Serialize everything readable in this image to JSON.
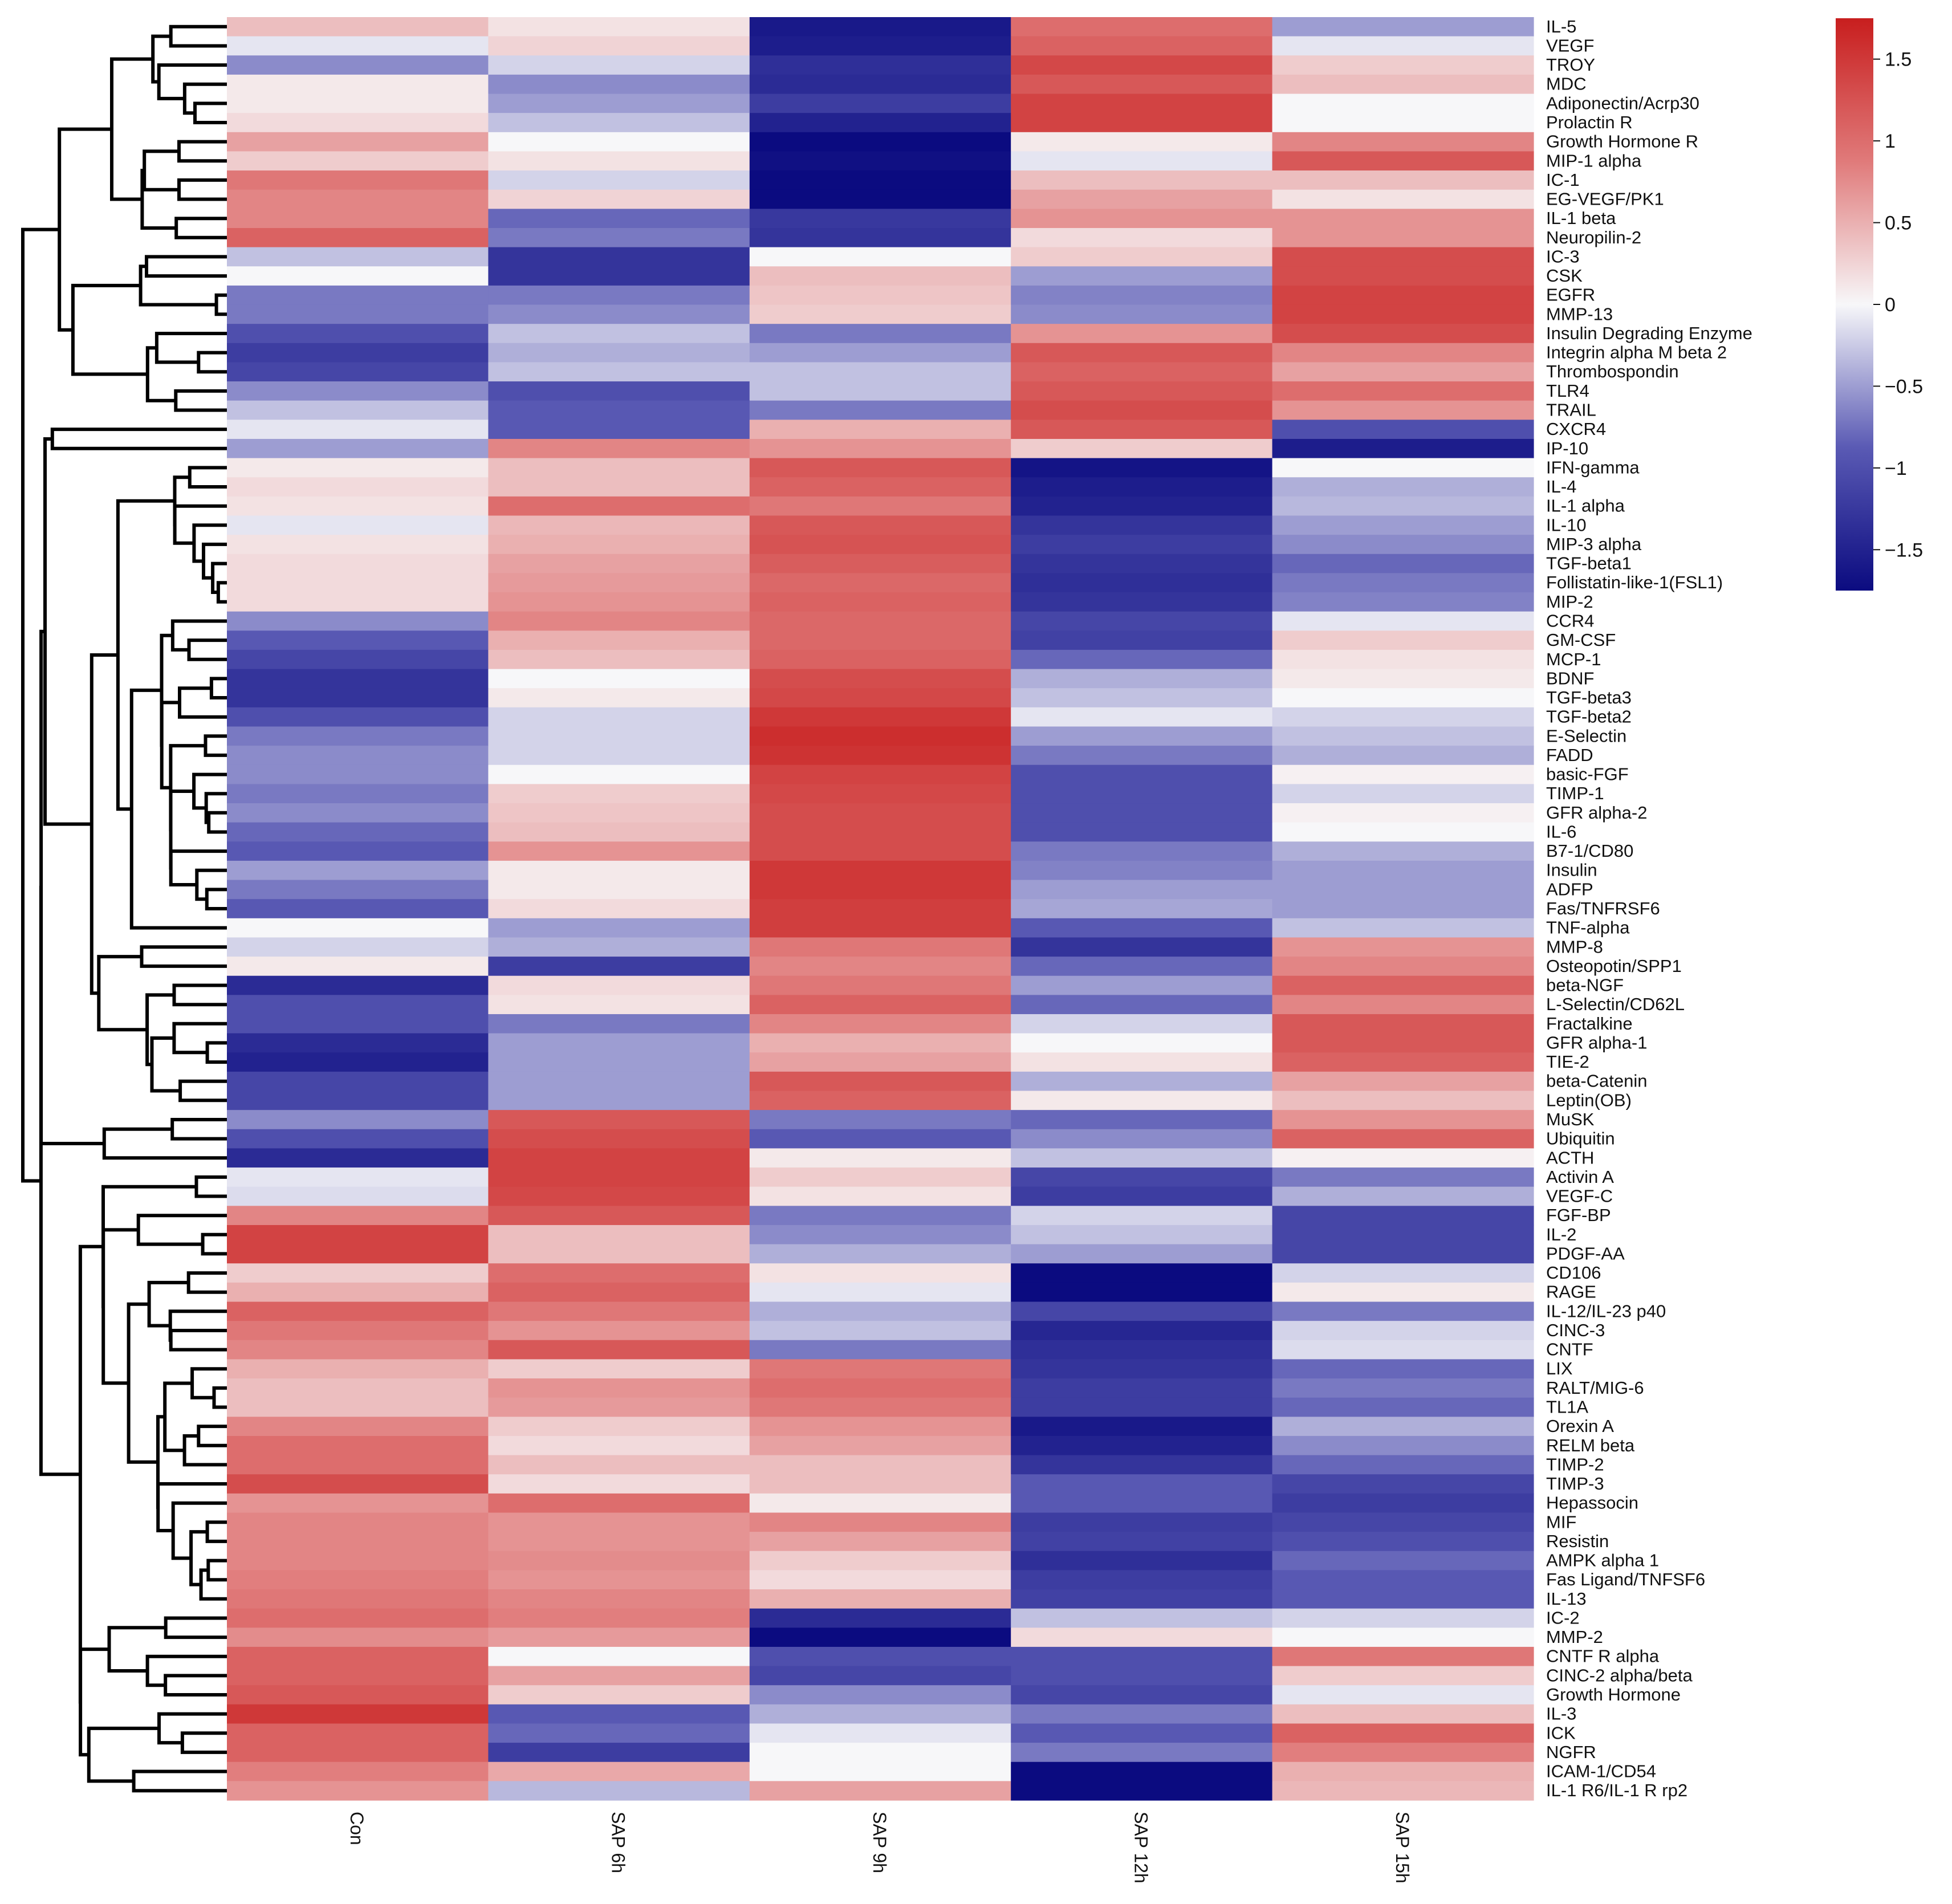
{
  "chart_data": {
    "type": "heatmap",
    "title": "",
    "xlabel": "",
    "ylabel": "",
    "columns": [
      "Con",
      "SAP 6h",
      "SAP 9h",
      "SAP 12h",
      "SAP 15h"
    ],
    "colorbar": {
      "min": -1.75,
      "max": 1.75,
      "ticks": [
        1.5,
        1,
        0.5,
        0,
        -0.5,
        -1,
        -1.5
      ],
      "tick_labels": [
        "1.5",
        "1",
        "0.5",
        "0",
        "−0.5",
        "−1",
        "−1.5"
      ],
      "colors": {
        "low": "#0b0b80",
        "mid": "#f7f7f9",
        "high": "#c81e1e"
      }
    },
    "rows": [
      {
        "label": "IL-5",
        "values": [
          0.4,
          0.15,
          -1.6,
          1.0,
          -0.5
        ]
      },
      {
        "label": "VEGF",
        "values": [
          -0.1,
          0.25,
          -1.55,
          1.1,
          -0.1
        ]
      },
      {
        "label": "TROY",
        "values": [
          -0.6,
          -0.2,
          -1.35,
          1.35,
          0.3
        ]
      },
      {
        "label": "MDC",
        "values": [
          0.1,
          -0.6,
          -1.4,
          1.2,
          0.4
        ]
      },
      {
        "label": "Adiponectin/Acrp30",
        "values": [
          0.1,
          -0.5,
          -1.2,
          1.4,
          0.0
        ]
      },
      {
        "label": "Prolactin R",
        "values": [
          0.2,
          -0.3,
          -1.5,
          1.4,
          0.0
        ]
      },
      {
        "label": "Growth Hormone R",
        "values": [
          0.6,
          0.0,
          -1.75,
          0.1,
          0.8
        ]
      },
      {
        "label": "MIP-1 alpha",
        "values": [
          0.3,
          0.15,
          -1.7,
          -0.1,
          1.2
        ]
      },
      {
        "label": "IC-1",
        "values": [
          0.9,
          -0.2,
          -1.75,
          0.4,
          0.4
        ]
      },
      {
        "label": "EG-VEGF/PK1",
        "values": [
          0.8,
          0.25,
          -1.75,
          0.6,
          0.15
        ]
      },
      {
        "label": "IL-1 beta",
        "values": [
          0.8,
          -0.8,
          -1.25,
          0.7,
          0.7
        ]
      },
      {
        "label": "Neuropilin-2",
        "values": [
          1.1,
          -0.7,
          -1.3,
          0.2,
          0.7
        ]
      },
      {
        "label": "IC-3",
        "values": [
          -0.3,
          -1.3,
          0.0,
          0.3,
          1.3
        ]
      },
      {
        "label": "CSK",
        "values": [
          0.0,
          -1.3,
          0.4,
          -0.5,
          1.3
        ]
      },
      {
        "label": "EGFR",
        "values": [
          -0.7,
          -0.7,
          0.35,
          -0.65,
          1.4
        ]
      },
      {
        "label": "MMP-13",
        "values": [
          -0.7,
          -0.6,
          0.3,
          -0.6,
          1.4
        ]
      },
      {
        "label": "Insulin Degrading Enzyme",
        "values": [
          -1.0,
          -0.3,
          -0.7,
          0.7,
          1.3
        ]
      },
      {
        "label": "Integrin alpha M beta 2",
        "values": [
          -1.2,
          -0.4,
          -0.5,
          1.2,
          0.8
        ]
      },
      {
        "label": "Thrombospondin",
        "values": [
          -1.1,
          -0.3,
          -0.3,
          1.1,
          0.6
        ]
      },
      {
        "label": "TLR4",
        "values": [
          -0.6,
          -1.0,
          -0.3,
          1.2,
          1.0
        ]
      },
      {
        "label": "TRAIL",
        "values": [
          -0.3,
          -0.9,
          -0.7,
          1.3,
          0.7
        ]
      },
      {
        "label": "CXCR4",
        "values": [
          -0.1,
          -0.9,
          0.5,
          1.2,
          -1.0
        ]
      },
      {
        "label": "IP-10",
        "values": [
          -0.5,
          0.8,
          0.7,
          0.3,
          -1.55
        ]
      },
      {
        "label": "IFN-gamma",
        "values": [
          0.1,
          0.4,
          1.2,
          -1.65,
          0.0
        ]
      },
      {
        "label": "IL-4",
        "values": [
          0.2,
          0.4,
          1.1,
          -1.55,
          -0.4
        ]
      },
      {
        "label": "IL-1 alpha",
        "values": [
          0.15,
          1.0,
          0.9,
          -1.5,
          -0.35
        ]
      },
      {
        "label": "IL-10",
        "values": [
          -0.1,
          0.45,
          1.2,
          -1.3,
          -0.5
        ]
      },
      {
        "label": "MIP-3 alpha",
        "values": [
          0.15,
          0.5,
          1.25,
          -1.2,
          -0.6
        ]
      },
      {
        "label": "TGF-beta1",
        "values": [
          0.2,
          0.6,
          1.15,
          -1.3,
          -0.8
        ]
      },
      {
        "label": "Follistatin-like-1(FSL1)",
        "values": [
          0.2,
          0.65,
          1.05,
          -1.35,
          -0.7
        ]
      },
      {
        "label": "MIP-2",
        "values": [
          0.2,
          0.7,
          1.1,
          -1.3,
          -0.65
        ]
      },
      {
        "label": "CCR4",
        "values": [
          -0.6,
          0.8,
          1.05,
          -1.1,
          -0.1
        ]
      },
      {
        "label": "GM-CSF",
        "values": [
          -0.9,
          0.5,
          1.05,
          -1.15,
          0.3
        ]
      },
      {
        "label": "MCP-1",
        "values": [
          -1.1,
          0.4,
          1.1,
          -0.8,
          0.15
        ]
      },
      {
        "label": "BDNF",
        "values": [
          -1.3,
          0.0,
          1.3,
          -0.4,
          0.1
        ]
      },
      {
        "label": "TGF-beta3",
        "values": [
          -1.3,
          0.1,
          1.35,
          -0.3,
          0.0
        ]
      },
      {
        "label": "TGF-beta2",
        "values": [
          -1.0,
          -0.2,
          1.5,
          -0.1,
          -0.2
        ]
      },
      {
        "label": "E-Selectin",
        "values": [
          -0.7,
          -0.2,
          1.6,
          -0.5,
          -0.3
        ]
      },
      {
        "label": "FADD",
        "values": [
          -0.6,
          -0.2,
          1.55,
          -0.7,
          -0.4
        ]
      },
      {
        "label": "basic-FGF",
        "values": [
          -0.6,
          0.0,
          1.4,
          -1.0,
          0.05
        ]
      },
      {
        "label": "TIMP-1",
        "values": [
          -0.7,
          0.3,
          1.35,
          -1.0,
          -0.2
        ]
      },
      {
        "label": "GFR alpha-2",
        "values": [
          -0.6,
          0.35,
          1.3,
          -1.0,
          0.05
        ]
      },
      {
        "label": "IL-6",
        "values": [
          -0.8,
          0.4,
          1.3,
          -1.0,
          0.0
        ]
      },
      {
        "label": "B7-1/CD80",
        "values": [
          -0.9,
          0.7,
          1.3,
          -0.7,
          -0.4
        ]
      },
      {
        "label": "Insulin",
        "values": [
          -0.5,
          0.1,
          1.5,
          -0.65,
          -0.5
        ]
      },
      {
        "label": "ADFP",
        "values": [
          -0.7,
          0.1,
          1.5,
          -0.5,
          -0.5
        ]
      },
      {
        "label": "Fas/TNFRSF6",
        "values": [
          -0.9,
          0.2,
          1.45,
          -0.45,
          -0.5
        ]
      },
      {
        "label": "TNF-alpha",
        "values": [
          0.0,
          -0.5,
          1.45,
          -0.9,
          -0.3
        ]
      },
      {
        "label": "MMP-8",
        "values": [
          -0.2,
          -0.4,
          0.9,
          -1.3,
          0.7
        ]
      },
      {
        "label": "Osteopotin/SPP1",
        "values": [
          0.1,
          -1.2,
          0.8,
          -0.8,
          0.8
        ]
      },
      {
        "label": "beta-NGF",
        "values": [
          -1.4,
          0.2,
          0.9,
          -0.5,
          1.1
        ]
      },
      {
        "label": "L-Selectin/CD62L",
        "values": [
          -1.0,
          0.15,
          1.1,
          -0.8,
          0.8
        ]
      },
      {
        "label": "Fractalkine",
        "values": [
          -1.0,
          -0.7,
          0.8,
          -0.2,
          1.2
        ]
      },
      {
        "label": "GFR alpha-1",
        "values": [
          -1.4,
          -0.5,
          0.5,
          0.0,
          1.2
        ]
      },
      {
        "label": "TIE-2",
        "values": [
          -1.5,
          -0.5,
          0.6,
          0.15,
          1.1
        ]
      },
      {
        "label": "beta-Catenin",
        "values": [
          -1.1,
          -0.5,
          1.2,
          -0.4,
          0.6
        ]
      },
      {
        "label": "Leptin(OB)",
        "values": [
          -1.1,
          -0.5,
          1.1,
          0.1,
          0.4
        ]
      },
      {
        "label": "MuSK",
        "values": [
          -0.6,
          1.2,
          -0.7,
          -0.8,
          0.7
        ]
      },
      {
        "label": "Ubiquitin",
        "values": [
          -1.0,
          1.3,
          -0.9,
          -0.6,
          1.1
        ]
      },
      {
        "label": "ACTH",
        "values": [
          -1.4,
          1.4,
          0.1,
          -0.3,
          0.05
        ]
      },
      {
        "label": "Activin A",
        "values": [
          -0.1,
          1.4,
          0.3,
          -1.1,
          -0.7
        ]
      },
      {
        "label": "VEGF-C",
        "values": [
          -0.15,
          1.35,
          0.15,
          -1.2,
          -0.4
        ]
      },
      {
        "label": "FGF-BP",
        "values": [
          0.8,
          1.2,
          -0.7,
          -0.2,
          -1.1
        ]
      },
      {
        "label": "IL-2",
        "values": [
          1.4,
          0.4,
          -0.6,
          -0.3,
          -1.1
        ]
      },
      {
        "label": "PDGF-AA",
        "values": [
          1.4,
          0.4,
          -0.4,
          -0.5,
          -1.1
        ]
      },
      {
        "label": "CD106",
        "values": [
          0.3,
          1.0,
          0.15,
          -1.75,
          -0.2
        ]
      },
      {
        "label": "RAGE",
        "values": [
          0.5,
          1.1,
          -0.1,
          -1.75,
          0.1
        ]
      },
      {
        "label": "IL-12/IL-23 p40",
        "values": [
          1.1,
          0.9,
          -0.4,
          -1.1,
          -0.7
        ]
      },
      {
        "label": "CINC-3",
        "values": [
          0.9,
          0.7,
          -0.3,
          -1.45,
          -0.2
        ]
      },
      {
        "label": "CNTF",
        "values": [
          0.8,
          1.2,
          -0.7,
          -1.35,
          -0.15
        ]
      },
      {
        "label": "LIX",
        "values": [
          0.5,
          0.3,
          0.9,
          -1.3,
          -0.8
        ]
      },
      {
        "label": "RALT/MIG-6",
        "values": [
          0.4,
          0.7,
          1.0,
          -1.2,
          -0.7
        ]
      },
      {
        "label": "TL1A",
        "values": [
          0.4,
          0.65,
          0.9,
          -1.2,
          -0.8
        ]
      },
      {
        "label": "Orexin A",
        "values": [
          0.8,
          0.3,
          0.7,
          -1.6,
          -0.4
        ]
      },
      {
        "label": "RELM beta",
        "values": [
          1.0,
          0.2,
          0.6,
          -1.5,
          -0.6
        ]
      },
      {
        "label": "TIMP-2",
        "values": [
          1.0,
          0.4,
          0.4,
          -1.3,
          -0.8
        ]
      },
      {
        "label": "TIMP-3",
        "values": [
          1.3,
          0.2,
          0.4,
          -0.9,
          -1.1
        ]
      },
      {
        "label": "Hepassocin",
        "values": [
          0.7,
          1.0,
          0.1,
          -0.9,
          -1.2
        ]
      },
      {
        "label": "MIF",
        "values": [
          0.8,
          0.7,
          0.8,
          -1.2,
          -1.1
        ]
      },
      {
        "label": "Resistin",
        "values": [
          0.8,
          0.7,
          0.6,
          -1.15,
          -1.0
        ]
      },
      {
        "label": "AMPK alpha 1",
        "values": [
          0.8,
          0.75,
          0.3,
          -1.35,
          -0.8
        ]
      },
      {
        "label": "Fas Ligand/TNFSF6",
        "values": [
          0.85,
          0.7,
          0.2,
          -1.2,
          -0.9
        ]
      },
      {
        "label": "IL-13",
        "values": [
          0.9,
          0.8,
          0.5,
          -1.15,
          -0.9
        ]
      },
      {
        "label": "IC-2",
        "values": [
          1.0,
          0.85,
          -1.4,
          -0.3,
          -0.2
        ]
      },
      {
        "label": "MMP-2",
        "values": [
          0.75,
          0.65,
          -1.75,
          0.2,
          0.0
        ]
      },
      {
        "label": "CNTF R alpha",
        "values": [
          1.1,
          0.0,
          -1.0,
          -1.0,
          0.9
        ]
      },
      {
        "label": "CINC-2 alpha/beta",
        "values": [
          1.1,
          0.6,
          -1.1,
          -1.0,
          0.3
        ]
      },
      {
        "label": "Growth Hormone",
        "values": [
          1.2,
          0.3,
          -0.6,
          -1.1,
          -0.1
        ]
      },
      {
        "label": "IL-3",
        "values": [
          1.5,
          -0.9,
          -0.4,
          -0.7,
          0.4
        ]
      },
      {
        "label": "ICK",
        "values": [
          1.1,
          -0.8,
          -0.1,
          -0.9,
          1.1
        ]
      },
      {
        "label": "NGFR",
        "values": [
          1.1,
          -1.2,
          0.0,
          -0.7,
          0.85
        ]
      },
      {
        "label": "ICAM-1/CD54",
        "values": [
          0.85,
          0.55,
          0.0,
          -1.75,
          0.5
        ]
      },
      {
        "label": "IL-1 R6/IL-1 R rp2",
        "values": [
          0.7,
          -0.35,
          0.6,
          -1.75,
          0.45
        ]
      }
    ]
  }
}
